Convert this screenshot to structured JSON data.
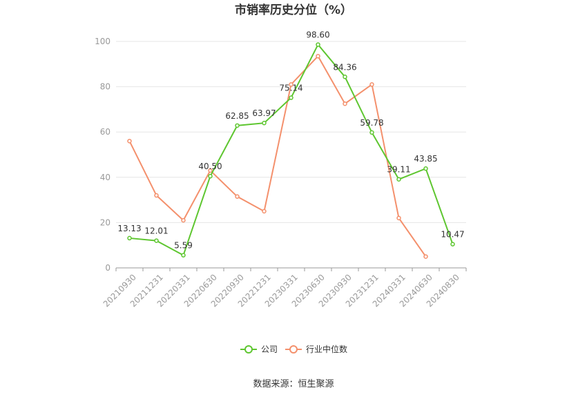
{
  "chart_data": {
    "type": "line",
    "title": "市销率历史分位（%）",
    "categories": [
      "20210930",
      "20211231",
      "20220331",
      "20220630",
      "20220930",
      "20221231",
      "20230331",
      "20230630",
      "20230930",
      "20231231",
      "20240331",
      "20240630",
      "20240830"
    ],
    "series": [
      {
        "name": "公司",
        "color": "#5ec630",
        "values": [
          13.13,
          12.01,
          5.59,
          40.5,
          62.85,
          63.97,
          75.14,
          98.6,
          84.36,
          59.78,
          39.11,
          43.85,
          10.47
        ],
        "labels": [
          "13.13",
          "12.01",
          "5.59",
          "40.50",
          "62.85",
          "63.97",
          "75.14",
          "98.60",
          "84.36",
          "59.78",
          "39.11",
          "43.85",
          "10.47"
        ]
      },
      {
        "name": "行业中位数",
        "color": "#f4906c",
        "values": [
          56,
          32,
          21,
          43,
          31.5,
          25,
          81,
          93.5,
          72.5,
          81,
          22,
          5,
          null
        ]
      }
    ],
    "ylim": [
      0,
      100
    ],
    "yticks": [
      0,
      20,
      40,
      60,
      80,
      100
    ],
    "grid": true,
    "legend_position": "bottom-center"
  },
  "source_text": "数据来源：恒生聚源"
}
